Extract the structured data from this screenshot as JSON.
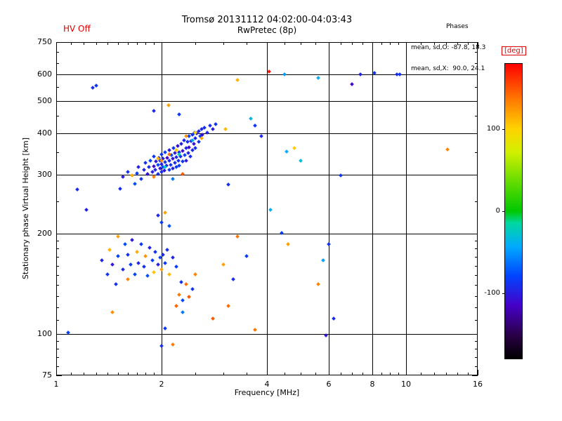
{
  "header": {
    "hv_status": "HV Off",
    "title": "Tromsø 20131112 04:02:00-04:03:43",
    "subtitle": "RwPretec (8p)",
    "phases": {
      "label": "Phases",
      "mean_sd_O": "mean, sd,O: -87.8, 18.3",
      "mean_sd_X": "mean, sd,X:  90.0, 24.1"
    }
  },
  "colors": {
    "background": "#ffffff",
    "axis": "#000000",
    "accent_red": "#e00000"
  },
  "chart_data": {
    "type": "scatter",
    "title": "Tromsø 20131112 04:02:00-04:03:43",
    "subtitle": "RwPretec (8p)",
    "xlabel": "Frequency [MHz]",
    "ylabel": "Stationary phase Virtual Height [km]",
    "x_scale": "log",
    "y_scale": "log",
    "xlim": [
      1,
      16
    ],
    "ylim": [
      75,
      750
    ],
    "grid": true,
    "x_major_ticks": [
      {
        "v": 1,
        "label": "1"
      },
      {
        "v": 2,
        "label": "2"
      },
      {
        "v": 4,
        "label": "4"
      },
      {
        "v": 6,
        "label": "6"
      },
      {
        "v": 8,
        "label": "8"
      },
      {
        "v": 10,
        "label": "10"
      },
      {
        "v": 16,
        "label": "16"
      }
    ],
    "y_major_ticks": [
      {
        "v": 75,
        "label": "75"
      },
      {
        "v": 100,
        "label": "100"
      },
      {
        "v": 200,
        "label": "200"
      },
      {
        "v": 300,
        "label": "300"
      },
      {
        "v": 400,
        "label": "400"
      },
      {
        "v": 500,
        "label": "500"
      },
      {
        "v": 600,
        "label": "600"
      },
      {
        "v": 750,
        "label": "750"
      }
    ],
    "x_grid": [
      2,
      4,
      6,
      8,
      10
    ],
    "y_grid": [
      100,
      200,
      300,
      400,
      500,
      600
    ],
    "x_minor_ticks": [
      1.1,
      1.2,
      1.3,
      1.4,
      1.5,
      1.6,
      1.7,
      1.8,
      1.9,
      2.5,
      3,
      3.5,
      4.5,
      5,
      5.5,
      6.5,
      7,
      7.5,
      8.5,
      9,
      9.5,
      11,
      12,
      13,
      14,
      15
    ],
    "y_minor_ticks": [
      80,
      85,
      90,
      95,
      110,
      120,
      130,
      140,
      150,
      160,
      170,
      180,
      190,
      250,
      350,
      450,
      550,
      650,
      700
    ],
    "colorbar": {
      "label": "[deg]",
      "min": -180,
      "max": 180,
      "ticks": [
        100,
        0,
        -100
      ],
      "stops": [
        [
          0.0,
          "#000000"
        ],
        [
          0.08,
          "#2a0048"
        ],
        [
          0.18,
          "#4600c8"
        ],
        [
          0.28,
          "#0044ff"
        ],
        [
          0.38,
          "#00aaff"
        ],
        [
          0.46,
          "#00d8a0"
        ],
        [
          0.5,
          "#00c800"
        ],
        [
          0.6,
          "#64dc00"
        ],
        [
          0.7,
          "#d2f000"
        ],
        [
          0.78,
          "#ffd200"
        ],
        [
          0.87,
          "#ff8200"
        ],
        [
          1.0,
          "#ff0000"
        ]
      ]
    },
    "points": [
      [
        1.78,
        310,
        -95
      ],
      [
        1.8,
        326,
        -88
      ],
      [
        1.82,
        302,
        -105
      ],
      [
        1.84,
        316,
        -92
      ],
      [
        1.86,
        331,
        -80
      ],
      [
        1.88,
        306,
        -98
      ],
      [
        1.9,
        318,
        -110
      ],
      [
        1.9,
        341,
        -86
      ],
      [
        1.92,
        311,
        -94
      ],
      [
        1.93,
        329,
        -102
      ],
      [
        1.95,
        301,
        -90
      ],
      [
        1.95,
        321,
        -78
      ],
      [
        1.96,
        337,
        -96
      ],
      [
        1.98,
        313,
        -108
      ],
      [
        1.98,
        331,
        -84
      ],
      [
        2.0,
        306,
        -92
      ],
      [
        2.0,
        323,
        -100
      ],
      [
        2.0,
        346,
        -88
      ],
      [
        2.02,
        316,
        -76
      ],
      [
        2.02,
        336,
        -96
      ],
      [
        2.04,
        309,
        -104
      ],
      [
        2.05,
        327,
        -90
      ],
      [
        2.05,
        351,
        -82
      ],
      [
        2.07,
        319,
        -98
      ],
      [
        2.08,
        337,
        -112
      ],
      [
        2.1,
        311,
        -86
      ],
      [
        2.1,
        331,
        -94
      ],
      [
        2.1,
        356,
        -102
      ],
      [
        2.12,
        321,
        -90
      ],
      [
        2.13,
        343,
        -79
      ],
      [
        2.15,
        313,
        -97
      ],
      [
        2.15,
        335,
        -105
      ],
      [
        2.16,
        361,
        -88
      ],
      [
        2.18,
        326,
        -93
      ],
      [
        2.18,
        349,
        -101
      ],
      [
        2.2,
        316,
        -85
      ],
      [
        2.2,
        339,
        -95
      ],
      [
        2.22,
        366,
        -107
      ],
      [
        2.23,
        331,
        -89
      ],
      [
        2.25,
        351,
        -97
      ],
      [
        2.25,
        319,
        -83
      ],
      [
        2.27,
        341,
        -91
      ],
      [
        2.28,
        371,
        -99
      ],
      [
        2.3,
        329,
        -87
      ],
      [
        2.3,
        353,
        -109
      ],
      [
        2.32,
        381,
        -93
      ],
      [
        2.33,
        343,
        -81
      ],
      [
        2.35,
        361,
        -95
      ],
      [
        2.35,
        331,
        -103
      ],
      [
        2.37,
        376,
        -89
      ],
      [
        2.38,
        349,
        -97
      ],
      [
        2.4,
        391,
        -85
      ],
      [
        2.4,
        363,
        -111
      ],
      [
        2.42,
        341,
        -91
      ],
      [
        2.43,
        379,
        -99
      ],
      [
        2.45,
        396,
        -87
      ],
      [
        2.45,
        356,
        -93
      ],
      [
        2.47,
        371,
        -105
      ],
      [
        2.48,
        401,
        -83
      ],
      [
        2.5,
        386,
        -95
      ],
      [
        2.5,
        361,
        -89
      ],
      [
        2.52,
        399,
        -101
      ],
      [
        2.55,
        376,
        -91
      ],
      [
        2.55,
        406,
        -97
      ],
      [
        2.58,
        391,
        -85
      ],
      [
        2.6,
        411,
        -93
      ],
      [
        2.62,
        396,
        -107
      ],
      [
        2.65,
        416,
        -89
      ],
      [
        2.7,
        401,
        -95
      ],
      [
        2.75,
        421,
        -91
      ],
      [
        2.8,
        411,
        -99
      ],
      [
        2.85,
        426,
        -87
      ],
      [
        1.95,
        335,
        112
      ],
      [
        2.0,
        330,
        128
      ],
      [
        2.1,
        346,
        140
      ],
      [
        2.2,
        356,
        104
      ],
      [
        2.3,
        302,
        148
      ],
      [
        2.35,
        391,
        126
      ],
      [
        2.5,
        401,
        98
      ],
      [
        2.6,
        386,
        118
      ],
      [
        2.05,
        316,
        -28
      ],
      [
        2.25,
        346,
        -22
      ],
      [
        2.45,
        381,
        -38
      ],
      [
        1.9,
        296,
        135
      ],
      [
        2.15,
        292,
        -62
      ],
      [
        1.52,
        272,
        -92
      ],
      [
        1.55,
        296,
        -100
      ],
      [
        1.6,
        306,
        -88
      ],
      [
        1.65,
        299,
        118
      ],
      [
        1.7,
        303,
        -84
      ],
      [
        1.72,
        316,
        -96
      ],
      [
        1.75,
        291,
        -90
      ],
      [
        1.68,
        282,
        -76
      ],
      [
        1.9,
        466,
        -94
      ],
      [
        2.09,
        486,
        122
      ],
      [
        2.24,
        456,
        -86
      ],
      [
        1.27,
        546,
        -90
      ],
      [
        3.29,
        578,
        114
      ],
      [
        1.35,
        166,
        -96
      ],
      [
        1.4,
        151,
        -86
      ],
      [
        1.42,
        179,
        112
      ],
      [
        1.45,
        161,
        -101
      ],
      [
        1.48,
        141,
        -91
      ],
      [
        1.5,
        171,
        -81
      ],
      [
        1.5,
        196,
        121
      ],
      [
        1.55,
        156,
        -94
      ],
      [
        1.57,
        186,
        -76
      ],
      [
        1.6,
        146,
        131
      ],
      [
        1.6,
        173,
        -89
      ],
      [
        1.63,
        161,
        -84
      ],
      [
        1.65,
        191,
        -102
      ],
      [
        1.68,
        151,
        -79
      ],
      [
        1.7,
        176,
        116
      ],
      [
        1.72,
        163,
        -94
      ],
      [
        1.75,
        186,
        -86
      ],
      [
        1.78,
        159,
        -91
      ],
      [
        1.8,
        171,
        126
      ],
      [
        1.82,
        149,
        -74
      ],
      [
        1.85,
        181,
        -96
      ],
      [
        1.88,
        166,
        -84
      ],
      [
        1.9,
        153,
        106
      ],
      [
        1.92,
        176,
        -89
      ],
      [
        1.95,
        161,
        -99
      ],
      [
        1.98,
        169,
        -81
      ],
      [
        2.0,
        156,
        119
      ],
      [
        2.02,
        173,
        -94
      ],
      [
        2.05,
        163,
        -86
      ],
      [
        2.08,
        179,
        -91
      ],
      [
        2.1,
        151,
        111
      ],
      [
        2.15,
        169,
        -96
      ],
      [
        2.2,
        159,
        -84
      ],
      [
        2.25,
        131,
        136
      ],
      [
        2.28,
        143,
        -89
      ],
      [
        2.3,
        126,
        -79
      ],
      [
        1.95,
        226,
        -92
      ],
      [
        2.0,
        216,
        -84
      ],
      [
        2.05,
        231,
        121
      ],
      [
        2.1,
        211,
        -74
      ],
      [
        2.35,
        141,
        141
      ],
      [
        2.4,
        129,
        149
      ],
      [
        2.45,
        136,
        -88
      ],
      [
        2.5,
        151,
        131
      ],
      [
        2.2,
        121,
        144
      ],
      [
        2.3,
        116,
        -60
      ],
      [
        1.08,
        101,
        -82
      ],
      [
        1.15,
        271,
        -92
      ],
      [
        1.22,
        236,
        -100
      ],
      [
        1.3,
        556,
        -86
      ],
      [
        1.45,
        116,
        128
      ],
      [
        3.05,
        411,
        112
      ],
      [
        3.1,
        281,
        -90
      ],
      [
        3.3,
        196,
        138
      ],
      [
        3.5,
        171,
        -84
      ],
      [
        3.0,
        161,
        121
      ],
      [
        3.2,
        146,
        -92
      ],
      [
        3.1,
        121,
        142
      ],
      [
        2.8,
        111,
        148
      ],
      [
        2.05,
        104,
        -88
      ],
      [
        2.15,
        93,
        135
      ],
      [
        2.0,
        92,
        -90
      ],
      [
        4.05,
        612,
        172
      ],
      [
        4.5,
        601,
        -48
      ],
      [
        5.6,
        586,
        -42
      ],
      [
        3.7,
        421,
        -86
      ],
      [
        3.85,
        391,
        -94
      ],
      [
        4.8,
        361,
        104
      ],
      [
        5.0,
        331,
        -32
      ],
      [
        4.4,
        201,
        -82
      ],
      [
        4.6,
        186,
        122
      ],
      [
        5.8,
        166,
        -46
      ],
      [
        5.6,
        141,
        132
      ],
      [
        6.2,
        111,
        -92
      ],
      [
        5.9,
        99,
        -104
      ],
      [
        7.4,
        601,
        -96
      ],
      [
        8.1,
        606,
        -88
      ],
      [
        9.4,
        601,
        -92
      ],
      [
        9.6,
        599,
        -86
      ],
      [
        7.0,
        561,
        -112
      ],
      [
        6.0,
        186,
        -90
      ],
      [
        6.5,
        299,
        -86
      ],
      [
        13.1,
        357,
        132
      ],
      [
        4.56,
        352,
        -44
      ],
      [
        4.09,
        236,
        -40
      ],
      [
        3.59,
        442,
        -36
      ],
      [
        3.69,
        103,
        138
      ]
    ]
  }
}
